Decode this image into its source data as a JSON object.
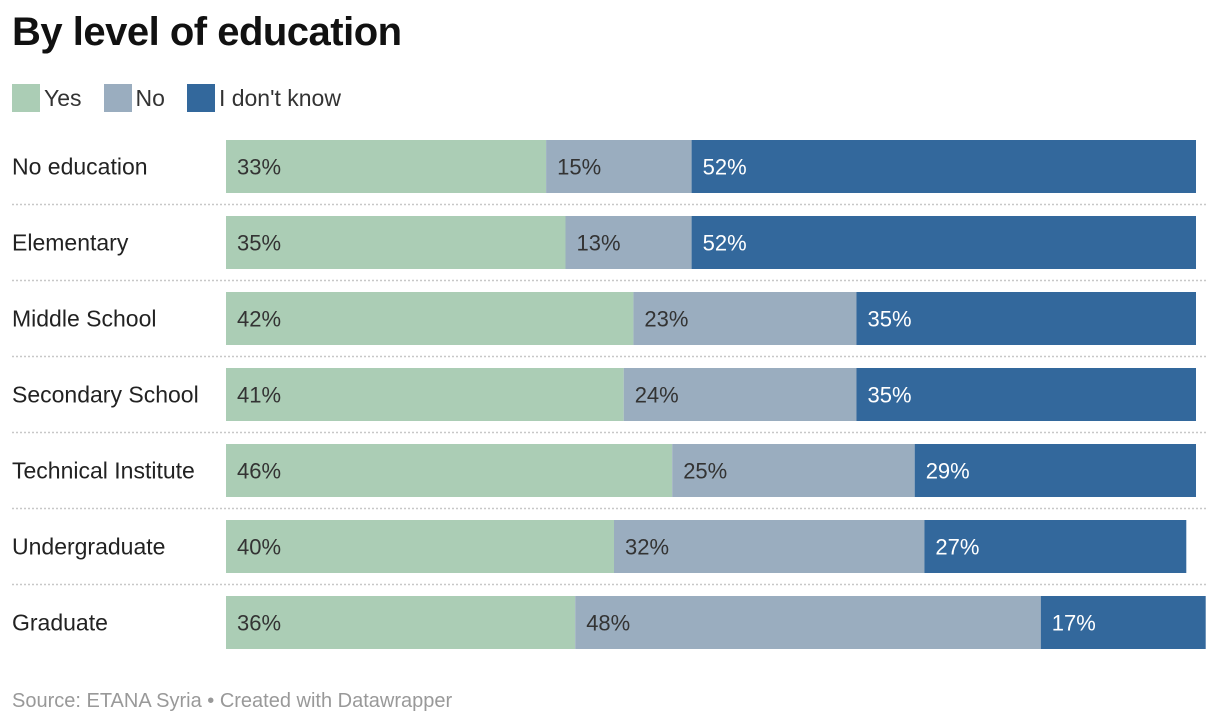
{
  "header": {
    "title": "By level of education"
  },
  "footer": {
    "source": "Source: ETANA Syria • Created with Datawrapper"
  },
  "colors": {
    "yes": "#abcdb5",
    "no": "#9aadbf",
    "dont_know": "#33689c",
    "label_dark": "#333333",
    "label_light": "#ffffff",
    "separator": "#c8c8c8"
  },
  "chart_data": {
    "type": "bar",
    "orientation": "horizontal",
    "stacked": true,
    "title": "By level of education",
    "legend_position": "top-left",
    "categories": [
      "No education",
      "Elementary",
      "Middle School",
      "Secondary School",
      "Technical Institute",
      "Undergraduate",
      "Graduate"
    ],
    "series": [
      {
        "name": "Yes",
        "values": [
          33,
          35,
          42,
          41,
          46,
          40,
          36
        ]
      },
      {
        "name": "No",
        "values": [
          15,
          13,
          23,
          24,
          25,
          32,
          48
        ]
      },
      {
        "name": "I don't know",
        "values": [
          52,
          52,
          35,
          35,
          29,
          27,
          17
        ]
      }
    ],
    "value_suffix": "%",
    "xlim": [
      0,
      100
    ],
    "grid": false
  }
}
